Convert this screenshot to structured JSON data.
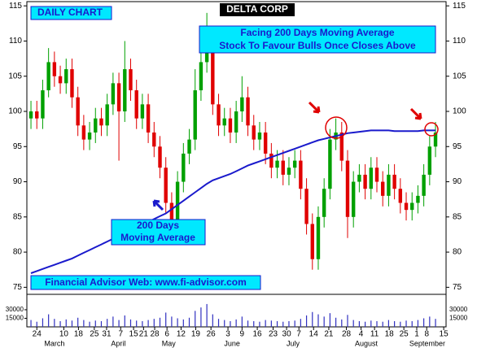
{
  "chart_data": {
    "type": "candlestick",
    "title": "DELTA CORP",
    "subtitle": "DAILY CHART",
    "annotations": [
      "Facing 200 Days Moving Average",
      "Stock To Favour Bulls Once Closes Above",
      "200 Days",
      "Moving Average",
      "Financial Advisor Web: www.fi-advisor.com"
    ],
    "up_color": "#00a000",
    "down_color": "#e00000",
    "open": [
      99,
      100,
      99,
      103,
      107,
      105,
      104,
      106,
      102,
      98,
      96,
      97,
      99,
      98,
      101,
      104,
      100,
      106,
      103,
      99,
      101,
      97,
      95,
      92,
      87,
      84,
      90,
      94,
      96,
      103,
      107,
      110,
      101,
      98,
      99,
      97,
      100,
      102,
      98,
      96,
      97,
      94,
      92,
      93,
      91,
      92,
      93,
      89,
      84,
      79,
      85,
      89,
      96,
      97,
      93,
      85,
      90,
      91,
      89,
      92,
      90,
      88,
      91,
      89,
      87,
      86,
      87,
      88,
      91,
      95
    ],
    "high": [
      101.5,
      101.5,
      104.5,
      109,
      108.5,
      106.5,
      107.5,
      107.5,
      103.5,
      99.5,
      98.5,
      100.5,
      100.5,
      102.5,
      105.5,
      105.5,
      110,
      107.5,
      104.5,
      102.5,
      102.5,
      98.5,
      96.5,
      93.5,
      88.5,
      91.5,
      95.5,
      97.5,
      106,
      110,
      114,
      111.5,
      102.5,
      100.5,
      100.5,
      101.5,
      105,
      103.5,
      99.5,
      98.5,
      98.5,
      95.5,
      94.5,
      94.5,
      93.5,
      94.5,
      94.5,
      90.5,
      85.5,
      86.5,
      90.5,
      97.5,
      99,
      98.5,
      94.5,
      91.5,
      92.5,
      92.5,
      93.5,
      93.5,
      91.5,
      92.5,
      92.5,
      90.5,
      88.5,
      88.5,
      89.5,
      92.5,
      96.5,
      98.5
    ],
    "low": [
      97.5,
      97.5,
      97.5,
      102,
      103.5,
      102.5,
      102.5,
      100.5,
      96.5,
      94.5,
      94.5,
      95.5,
      96.5,
      96.5,
      99.5,
      93,
      98.5,
      101.5,
      97.5,
      97.5,
      95.5,
      93.5,
      90.5,
      85.5,
      82.5,
      82.5,
      88.5,
      92.5,
      94.5,
      101.5,
      105.5,
      99.5,
      96.5,
      96.5,
      95.5,
      95.5,
      98.5,
      96.5,
      94.5,
      94.5,
      92.5,
      90.5,
      90.5,
      89.5,
      89.5,
      90.5,
      87.5,
      82.5,
      77.5,
      77.5,
      83.5,
      87.5,
      94.5,
      91.5,
      82,
      83.5,
      88.5,
      87.5,
      87.5,
      88.5,
      86.5,
      86.5,
      87.5,
      85.5,
      84.5,
      84.5,
      85.5,
      86.5,
      89.5,
      93.5
    ],
    "close": [
      100,
      99,
      103,
      107,
      105,
      104,
      106,
      102,
      98,
      96,
      97,
      99,
      98,
      101,
      104,
      100,
      106,
      103,
      99,
      101,
      97,
      95,
      92,
      87,
      84,
      90,
      94,
      96,
      103,
      107,
      110,
      101,
      98,
      99,
      97,
      100,
      102,
      98,
      96,
      97,
      94,
      92,
      93,
      91,
      92,
      93,
      89,
      84,
      79,
      85,
      89,
      96,
      97,
      93,
      85,
      90,
      91,
      89,
      92,
      90,
      88,
      91,
      89,
      87,
      86,
      87,
      88,
      91,
      95,
      97
    ],
    "moving_average": {
      "name": "200 Days Moving Average",
      "color": "#1a1acc",
      "values": [
        77,
        77.3,
        77.6,
        77.9,
        78.2,
        78.5,
        78.8,
        79.1,
        79.5,
        79.9,
        80.3,
        80.7,
        81.1,
        81.5,
        81.9,
        82.3,
        82.7,
        83.1,
        83.5,
        83.9,
        84.3,
        84.7,
        85.1,
        85.5,
        86.1,
        86.7,
        87.3,
        87.9,
        88.5,
        89.1,
        89.7,
        90.2,
        90.5,
        90.8,
        91.1,
        91.5,
        91.9,
        92.3,
        92.6,
        92.9,
        93.2,
        93.5,
        93.8,
        94.1,
        94.4,
        94.7,
        95,
        95.3,
        95.6,
        95.9,
        96.1,
        96.3,
        96.5,
        96.7,
        96.9,
        97,
        97.1,
        97.2,
        97.3,
        97.3,
        97.3,
        97.3,
        97.2,
        97.2,
        97.2,
        97.2,
        97.2,
        97.3,
        97.3,
        97.3
      ]
    },
    "volume": {
      "color": "#3030c0",
      "values": [
        12000,
        9000,
        15000,
        22000,
        14000,
        10000,
        13000,
        11000,
        16000,
        12000,
        9000,
        11000,
        10000,
        14000,
        18000,
        12000,
        20000,
        13000,
        11000,
        10000,
        12000,
        14000,
        16000,
        25000,
        18000,
        15000,
        13000,
        16000,
        28000,
        34000,
        40000,
        22000,
        14000,
        12000,
        10000,
        13000,
        18000,
        11000,
        10000,
        9000,
        12000,
        11000,
        10000,
        9000,
        10000,
        11000,
        14000,
        20000,
        26000,
        22000,
        18000,
        24000,
        16000,
        13000,
        21000,
        12000,
        10000,
        9000,
        11000,
        10000,
        9000,
        12000,
        10000,
        9000,
        11000,
        10000,
        12000,
        15000,
        18000,
        14000
      ],
      "ylim": [
        0,
        57000
      ],
      "yticks": [
        30000,
        15000
      ]
    },
    "xlim": [
      -0.7,
      70.8
    ],
    "ylim": [
      74,
      115.6
    ],
    "yticks": [
      75,
      80,
      85,
      90,
      95,
      100,
      105,
      110,
      115
    ],
    "xticks": [
      {
        "value": 1,
        "label": "24"
      },
      {
        "value": 5.6,
        "label": "10"
      },
      {
        "value": 8.1,
        "label": "18"
      },
      {
        "value": 10.8,
        "label": "25"
      },
      {
        "value": 12.9,
        "label": "31"
      },
      {
        "value": 15.3,
        "label": "7"
      },
      {
        "value": 17.5,
        "label": "15"
      },
      {
        "value": 19.2,
        "label": "21"
      },
      {
        "value": 21.1,
        "label": "28"
      },
      {
        "value": 23.2,
        "label": "6"
      },
      {
        "value": 25.6,
        "label": "12"
      },
      {
        "value": 28.1,
        "label": "19"
      },
      {
        "value": 30.7,
        "label": "26"
      },
      {
        "value": 33.6,
        "label": "3"
      },
      {
        "value": 36,
        "label": "9"
      },
      {
        "value": 38.6,
        "label": "16"
      },
      {
        "value": 41.3,
        "label": "23"
      },
      {
        "value": 43.6,
        "label": "30"
      },
      {
        "value": 45.7,
        "label": "7"
      },
      {
        "value": 48.2,
        "label": "14"
      },
      {
        "value": 50.8,
        "label": "21"
      },
      {
        "value": 53.8,
        "label": "28"
      },
      {
        "value": 56.3,
        "label": "4"
      },
      {
        "value": 58.6,
        "label": "11"
      },
      {
        "value": 61.1,
        "label": "18"
      },
      {
        "value": 63.6,
        "label": "25"
      },
      {
        "value": 65.8,
        "label": "1"
      },
      {
        "value": 67.5,
        "label": "8"
      },
      {
        "value": 70.4,
        "label": "15"
      }
    ],
    "month_ticks": [
      {
        "value": 4,
        "label": "March"
      },
      {
        "value": 14.9,
        "label": "April"
      },
      {
        "value": 23.5,
        "label": "May"
      },
      {
        "value": 34.3,
        "label": "June"
      },
      {
        "value": 44.7,
        "label": "July"
      },
      {
        "value": 57.2,
        "label": "August"
      },
      {
        "value": 67.6,
        "label": "September"
      }
    ]
  }
}
